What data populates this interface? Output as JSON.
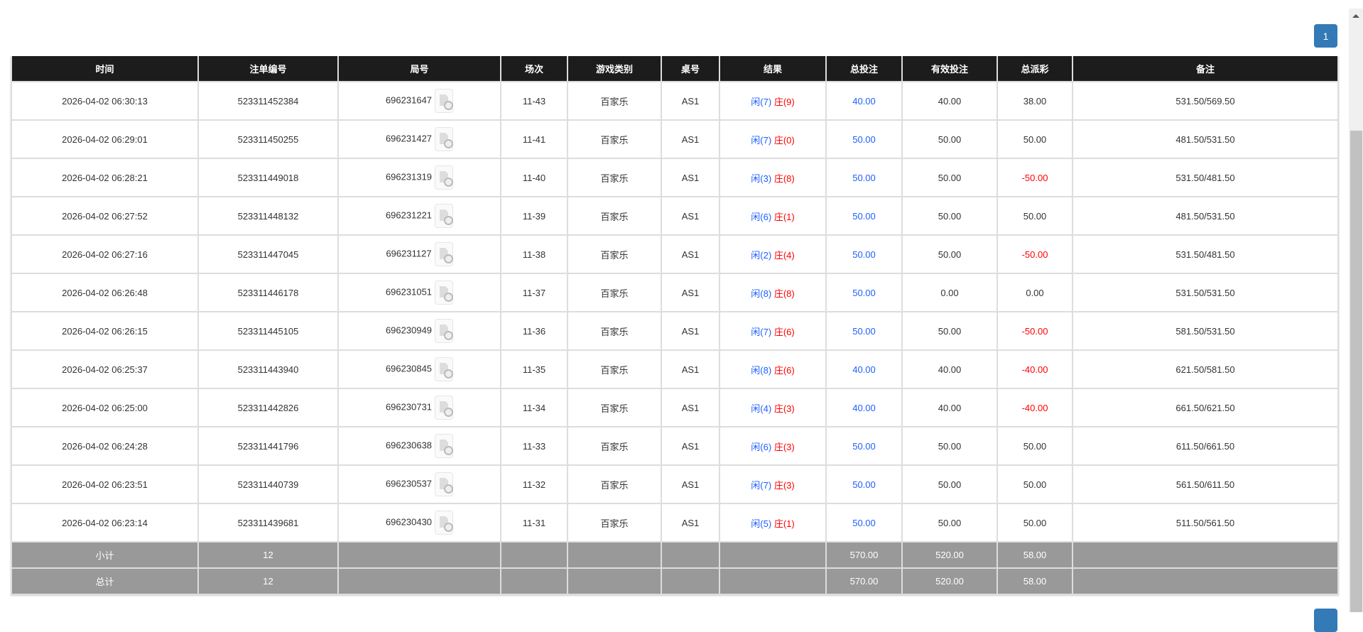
{
  "pagination": {
    "current": "1"
  },
  "colors": {
    "header_bg": "#1c1c1c",
    "blue": "#1e5eff",
    "red": "#ff0000",
    "summary_bg": "#999999",
    "page_button": "#337ab7"
  },
  "columns": [
    "时间",
    "注单编号",
    "局号",
    "场次",
    "游戏类别",
    "桌号",
    "结果",
    "总投注",
    "有效投注",
    "总派彩",
    "备注"
  ],
  "rows": [
    {
      "time": "2026-04-02 06:30:13",
      "bet_id": "523311452384",
      "round": "696231647",
      "shoe": "11-43",
      "game": "百家乐",
      "table": "AS1",
      "player": "闲(7)",
      "banker": "庄(9)",
      "bet": "40.00",
      "valid": "40.00",
      "payout": "38.00",
      "note": "531.50/569.50"
    },
    {
      "time": "2026-04-02 06:29:01",
      "bet_id": "523311450255",
      "round": "696231427",
      "shoe": "11-41",
      "game": "百家乐",
      "table": "AS1",
      "player": "闲(7)",
      "banker": "庄(0)",
      "bet": "50.00",
      "valid": "50.00",
      "payout": "50.00",
      "note": "481.50/531.50"
    },
    {
      "time": "2026-04-02 06:28:21",
      "bet_id": "523311449018",
      "round": "696231319",
      "shoe": "11-40",
      "game": "百家乐",
      "table": "AS1",
      "player": "闲(3)",
      "banker": "庄(8)",
      "bet": "50.00",
      "valid": "50.00",
      "payout": "-50.00",
      "note": "531.50/481.50"
    },
    {
      "time": "2026-04-02 06:27:52",
      "bet_id": "523311448132",
      "round": "696231221",
      "shoe": "11-39",
      "game": "百家乐",
      "table": "AS1",
      "player": "闲(6)",
      "banker": "庄(1)",
      "bet": "50.00",
      "valid": "50.00",
      "payout": "50.00",
      "note": "481.50/531.50"
    },
    {
      "time": "2026-04-02 06:27:16",
      "bet_id": "523311447045",
      "round": "696231127",
      "shoe": "11-38",
      "game": "百家乐",
      "table": "AS1",
      "player": "闲(2)",
      "banker": "庄(4)",
      "bet": "50.00",
      "valid": "50.00",
      "payout": "-50.00",
      "note": "531.50/481.50"
    },
    {
      "time": "2026-04-02 06:26:48",
      "bet_id": "523311446178",
      "round": "696231051",
      "shoe": "11-37",
      "game": "百家乐",
      "table": "AS1",
      "player": "闲(8)",
      "banker": "庄(8)",
      "bet": "50.00",
      "valid": "0.00",
      "payout": "0.00",
      "note": "531.50/531.50"
    },
    {
      "time": "2026-04-02 06:26:15",
      "bet_id": "523311445105",
      "round": "696230949",
      "shoe": "11-36",
      "game": "百家乐",
      "table": "AS1",
      "player": "闲(7)",
      "banker": "庄(6)",
      "bet": "50.00",
      "valid": "50.00",
      "payout": "-50.00",
      "note": "581.50/531.50"
    },
    {
      "time": "2026-04-02 06:25:37",
      "bet_id": "523311443940",
      "round": "696230845",
      "shoe": "11-35",
      "game": "百家乐",
      "table": "AS1",
      "player": "闲(8)",
      "banker": "庄(6)",
      "bet": "40.00",
      "valid": "40.00",
      "payout": "-40.00",
      "note": "621.50/581.50"
    },
    {
      "time": "2026-04-02 06:25:00",
      "bet_id": "523311442826",
      "round": "696230731",
      "shoe": "11-34",
      "game": "百家乐",
      "table": "AS1",
      "player": "闲(4)",
      "banker": "庄(3)",
      "bet": "40.00",
      "valid": "40.00",
      "payout": "-40.00",
      "note": "661.50/621.50"
    },
    {
      "time": "2026-04-02 06:24:28",
      "bet_id": "523311441796",
      "round": "696230638",
      "shoe": "11-33",
      "game": "百家乐",
      "table": "AS1",
      "player": "闲(6)",
      "banker": "庄(3)",
      "bet": "50.00",
      "valid": "50.00",
      "payout": "50.00",
      "note": "611.50/661.50"
    },
    {
      "time": "2026-04-02 06:23:51",
      "bet_id": "523311440739",
      "round": "696230537",
      "shoe": "11-32",
      "game": "百家乐",
      "table": "AS1",
      "player": "闲(7)",
      "banker": "庄(3)",
      "bet": "50.00",
      "valid": "50.00",
      "payout": "50.00",
      "note": "561.50/611.50"
    },
    {
      "time": "2026-04-02 06:23:14",
      "bet_id": "523311439681",
      "round": "696230430",
      "shoe": "11-31",
      "game": "百家乐",
      "table": "AS1",
      "player": "闲(5)",
      "banker": "庄(1)",
      "bet": "50.00",
      "valid": "50.00",
      "payout": "50.00",
      "note": "511.50/561.50"
    }
  ],
  "subtotal": {
    "label": "小计",
    "count": "12",
    "bet": "570.00",
    "valid": "520.00",
    "payout": "58.00"
  },
  "total": {
    "label": "总计",
    "count": "12",
    "bet": "570.00",
    "valid": "520.00",
    "payout": "58.00"
  }
}
